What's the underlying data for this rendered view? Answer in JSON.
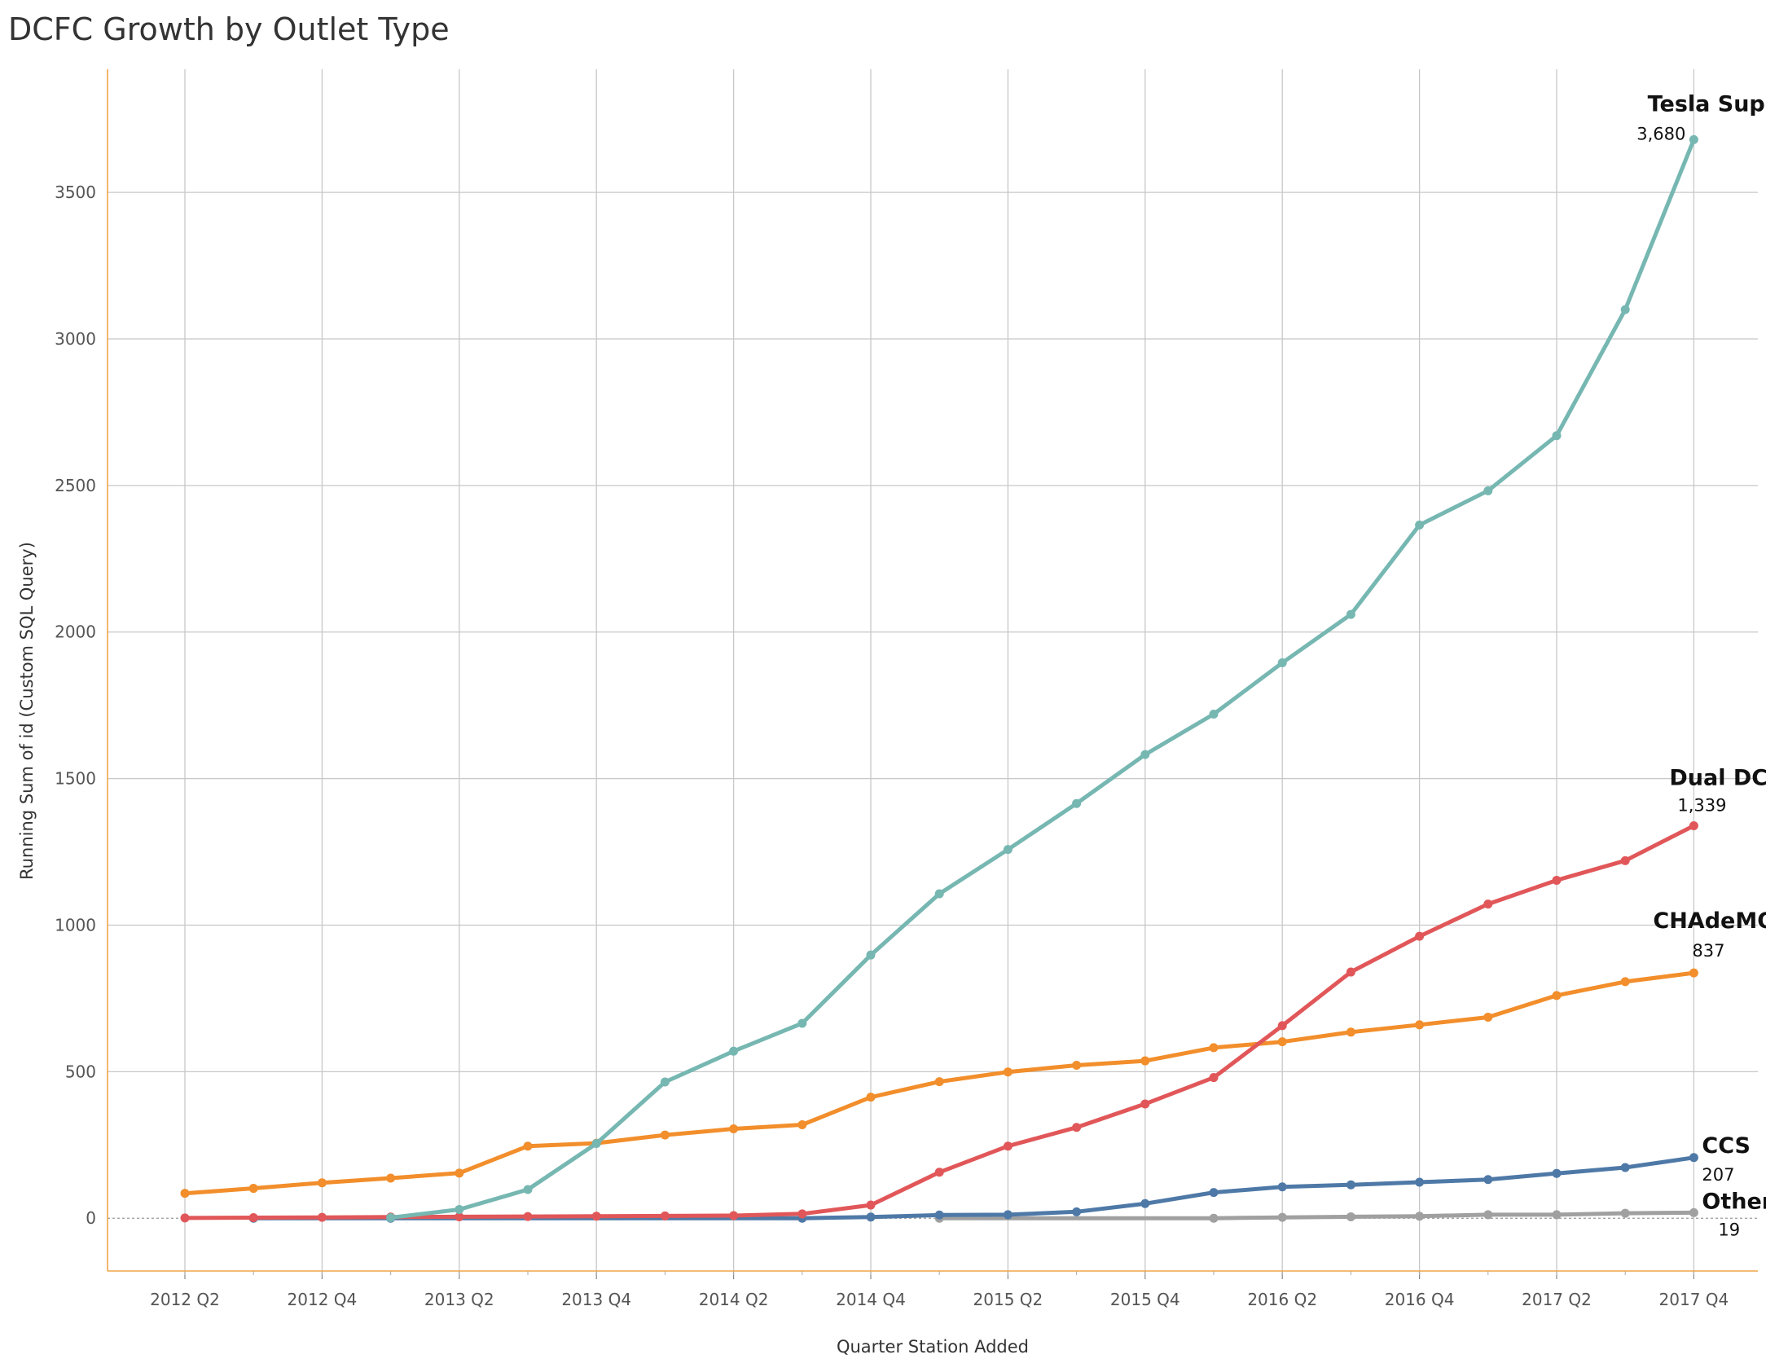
{
  "chart_data": {
    "type": "line",
    "title": "DCFC Growth by Outlet Type",
    "xlabel": "Quarter Station Added",
    "ylabel": "Running Sum of id (Custom SQL Query)",
    "ylim": [
      -180,
      3920
    ],
    "yticks": [
      0,
      500,
      1000,
      1500,
      2000,
      2500,
      3000,
      3500
    ],
    "x": [
      "2012 Q2",
      "2012 Q3",
      "2012 Q4",
      "2013 Q1",
      "2013 Q2",
      "2013 Q3",
      "2013 Q4",
      "2014 Q1",
      "2014 Q2",
      "2014 Q3",
      "2014 Q4",
      "2015 Q1",
      "2015 Q2",
      "2015 Q3",
      "2015 Q4",
      "2016 Q1",
      "2016 Q2",
      "2016 Q3",
      "2016 Q4",
      "2017 Q1",
      "2017 Q2",
      "2017 Q3",
      "2017 Q4"
    ],
    "xtick_labels": [
      "2012 Q2",
      "2012 Q4",
      "2013 Q2",
      "2013 Q4",
      "2014 Q2",
      "2014 Q4",
      "2015 Q2",
      "2015 Q4",
      "2016 Q2",
      "2016 Q4",
      "2017 Q2",
      "2017 Q4"
    ],
    "series": [
      {
        "name": "Tesla Supercharger",
        "color": "#76b7b2",
        "end_label": "3,680",
        "values": [
          null,
          null,
          null,
          2,
          30,
          98,
          255,
          465,
          570,
          665,
          898,
          1107,
          1258,
          1415,
          1582,
          1720,
          1895,
          2060,
          2365,
          2482,
          2670,
          3100,
          3680
        ]
      },
      {
        "name": "Dual DCFC",
        "color": "#e15759",
        "end_label": "1,339",
        "values": [
          1,
          2,
          3,
          4,
          5,
          6,
          7,
          8,
          9,
          15,
          45,
          157,
          246,
          310,
          390,
          480,
          657,
          840,
          962,
          1072,
          1153,
          1220,
          1339
        ]
      },
      {
        "name": "CHAdeMO",
        "color": "#f28e2b",
        "end_label": "837",
        "values": [
          85,
          102,
          121,
          137,
          154,
          246,
          256,
          284,
          305,
          319,
          413,
          466,
          499,
          522,
          537,
          582,
          602,
          635,
          660,
          686,
          760,
          807,
          837
        ]
      },
      {
        "name": "CCS",
        "color": "#4e79a7",
        "end_label": "207",
        "values": [
          null,
          0,
          null,
          0,
          null,
          null,
          null,
          null,
          null,
          0,
          4,
          11,
          12,
          22,
          50,
          88,
          107,
          114,
          123,
          132,
          153,
          173,
          207
        ]
      },
      {
        "name": "Other",
        "color": "#a0a0a0",
        "end_label": "19",
        "values": [
          null,
          null,
          null,
          null,
          null,
          null,
          null,
          null,
          null,
          null,
          null,
          0,
          null,
          null,
          null,
          0,
          3,
          5,
          7,
          12,
          12,
          17,
          19
        ]
      }
    ]
  }
}
